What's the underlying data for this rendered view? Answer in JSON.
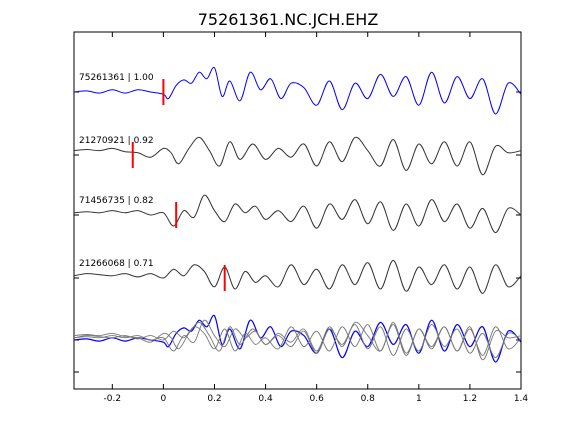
{
  "chart_data": {
    "type": "line",
    "title": "75261361.NC.JCH.EHZ",
    "xlabel": "",
    "ylabel": "",
    "xlim": [
      -0.35,
      1.4
    ],
    "x_ticks": [
      "-0.2",
      "0",
      "0.2",
      "0.4",
      "0.6",
      "0.8",
      "1",
      "1.2",
      "1.4"
    ],
    "x_tick_values": [
      -0.2,
      0,
      0.2,
      0.4,
      0.6,
      0.8,
      1.0,
      1.2,
      1.4
    ],
    "grid": false,
    "traces": [
      {
        "label": "75261361 | 1.00",
        "color": "#0000ff",
        "pick": 0.0,
        "x": [
          -0.35,
          -0.3,
          -0.25,
          -0.2,
          -0.15,
          -0.1,
          -0.05,
          0,
          0.02,
          0.05,
          0.08,
          0.11,
          0.14,
          0.17,
          0.2,
          0.23,
          0.26,
          0.3,
          0.34,
          0.38,
          0.42,
          0.46,
          0.5,
          0.55,
          0.6,
          0.65,
          0.7,
          0.75,
          0.8,
          0.85,
          0.9,
          0.95,
          1.0,
          1.05,
          1.1,
          1.15,
          1.2,
          1.25,
          1.3,
          1.35,
          1.4
        ],
        "y": [
          0,
          0.05,
          -0.05,
          0.1,
          -0.05,
          0.1,
          0,
          -0.1,
          -0.3,
          0.3,
          0.55,
          0.4,
          0.9,
          0.6,
          1.1,
          -0.2,
          0.5,
          -0.4,
          0.9,
          0.1,
          0.6,
          -0.3,
          0.4,
          0.2,
          -0.6,
          0.5,
          -0.8,
          0.4,
          -0.3,
          0.8,
          -0.2,
          0.7,
          -0.6,
          0.9,
          -0.5,
          0.7,
          -0.3,
          0.6,
          -1.0,
          0.4,
          -0.1
        ]
      },
      {
        "label": "21270921 | 0.92",
        "color": "#333333",
        "pick": -0.12,
        "x": [
          -0.35,
          -0.3,
          -0.25,
          -0.2,
          -0.15,
          -0.1,
          -0.05,
          0,
          0.03,
          0.06,
          0.1,
          0.14,
          0.18,
          0.22,
          0.26,
          0.3,
          0.35,
          0.4,
          0.45,
          0.5,
          0.55,
          0.6,
          0.65,
          0.7,
          0.75,
          0.8,
          0.85,
          0.9,
          0.95,
          1.0,
          1.05,
          1.1,
          1.15,
          1.2,
          1.25,
          1.3,
          1.35,
          1.4
        ],
        "y": [
          0.2,
          0.25,
          0.2,
          0.3,
          0.15,
          0.1,
          -0.1,
          0.3,
          0.1,
          -0.4,
          0.3,
          0.8,
          0.2,
          -0.5,
          0.6,
          -0.2,
          0.5,
          -0.2,
          0.3,
          -0.1,
          0.5,
          -0.5,
          0.6,
          -0.3,
          0.8,
          0.2,
          -0.5,
          0.7,
          -0.7,
          0.5,
          -0.4,
          0.6,
          -0.5,
          0.6,
          -0.9,
          0.4,
          0.1,
          0.2
        ]
      },
      {
        "label": "71456735 | 0.82",
        "color": "#333333",
        "pick": 0.05,
        "x": [
          -0.35,
          -0.3,
          -0.25,
          -0.2,
          -0.15,
          -0.1,
          -0.05,
          0,
          0.04,
          0.08,
          0.12,
          0.16,
          0.2,
          0.24,
          0.28,
          0.32,
          0.36,
          0.4,
          0.45,
          0.5,
          0.55,
          0.6,
          0.65,
          0.7,
          0.75,
          0.8,
          0.85,
          0.9,
          0.95,
          1.0,
          1.05,
          1.1,
          1.15,
          1.2,
          1.25,
          1.3,
          1.35,
          1.4
        ],
        "y": [
          0.1,
          0.15,
          0.1,
          0.2,
          0.1,
          0.2,
          0,
          0.1,
          -0.5,
          0.2,
          -0.1,
          0.9,
          0.2,
          -0.3,
          0.5,
          0.1,
          0.4,
          -0.2,
          0.2,
          -0.3,
          0.4,
          -0.6,
          0.5,
          -0.2,
          0.7,
          -0.4,
          0.6,
          -0.7,
          0.5,
          -0.5,
          0.7,
          -0.3,
          0.5,
          -0.6,
          0.3,
          -0.8,
          0.3,
          0.0
        ]
      },
      {
        "label": "21266068 | 0.71",
        "color": "#333333",
        "pick": 0.24,
        "x": [
          -0.35,
          -0.3,
          -0.25,
          -0.2,
          -0.15,
          -0.1,
          -0.05,
          0,
          0.04,
          0.08,
          0.12,
          0.16,
          0.2,
          0.24,
          0.28,
          0.32,
          0.36,
          0.4,
          0.45,
          0.5,
          0.55,
          0.6,
          0.65,
          0.7,
          0.75,
          0.8,
          0.85,
          0.9,
          0.95,
          1.0,
          1.05,
          1.1,
          1.15,
          1.2,
          1.25,
          1.3,
          1.35,
          1.4
        ],
        "y": [
          0.1,
          0.2,
          0.15,
          0.1,
          0.2,
          0.05,
          0.2,
          0,
          0.4,
          0.1,
          0.6,
          0.3,
          -0.4,
          0.5,
          -0.5,
          0.3,
          -0.2,
          0.1,
          -0.4,
          0.6,
          -0.3,
          0.4,
          -0.5,
          0.6,
          -0.3,
          0.7,
          -0.5,
          0.8,
          -0.6,
          0.5,
          -0.3,
          0.6,
          -0.5,
          0.5,
          -0.7,
          0.6,
          -0.4,
          0.1
        ]
      }
    ]
  }
}
